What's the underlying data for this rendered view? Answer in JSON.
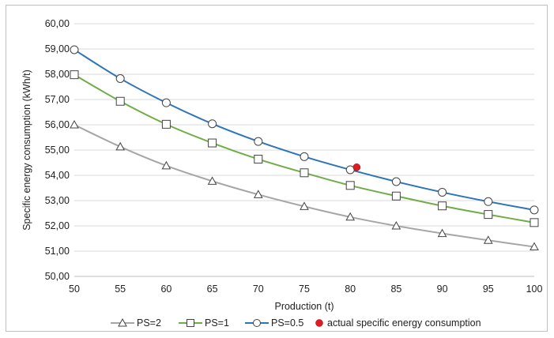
{
  "chart_data": {
    "type": "line",
    "title": "",
    "xlabel": "Production (t)",
    "ylabel": "Specific energy consumption (kWh/t)",
    "xlim": [
      50,
      100
    ],
    "ylim": [
      50,
      60
    ],
    "x_ticks": [
      "50",
      "55",
      "60",
      "65",
      "70",
      "75",
      "80",
      "85",
      "90",
      "95",
      "100"
    ],
    "y_ticks": [
      "50,00",
      "51,00",
      "52,00",
      "53,00",
      "54,00",
      "55,00",
      "56,00",
      "57,00",
      "58,00",
      "59,00",
      "60,00"
    ],
    "grid": "horizontal",
    "legend_position": "bottom",
    "x": [
      50,
      55,
      60,
      65,
      70,
      75,
      80,
      85,
      90,
      95,
      100
    ],
    "series": [
      {
        "name": "PS=2",
        "marker": "triangle",
        "color": "#a6a6a6",
        "values": [
          56.0,
          55.13,
          54.38,
          53.77,
          53.24,
          52.77,
          52.35,
          52.0,
          51.7,
          51.43,
          51.17
        ]
      },
      {
        "name": "PS=1",
        "marker": "square",
        "color": "#70ad47",
        "values": [
          57.98,
          56.93,
          56.02,
          55.28,
          54.64,
          54.1,
          53.6,
          53.18,
          52.79,
          52.45,
          52.13
        ]
      },
      {
        "name": "PS=0.5",
        "marker": "circle",
        "color": "#2e75b6",
        "values": [
          58.97,
          57.83,
          56.87,
          56.04,
          55.34,
          54.74,
          54.22,
          53.75,
          53.33,
          52.96,
          52.63
        ]
      }
    ],
    "points": [
      {
        "name": "actual specific energy consumption",
        "x": 80.7,
        "y": 54.32,
        "color": "#e21b22",
        "marker": "circle"
      }
    ]
  }
}
